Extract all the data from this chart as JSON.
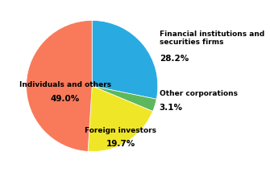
{
  "labels": [
    "Financial institutions and\nsecurities firms",
    "Other corporations",
    "Foreign investors",
    "Individuals and others"
  ],
  "values": [
    28.2,
    3.1,
    19.7,
    49.0
  ],
  "colors": [
    "#29abe2",
    "#5cb85c",
    "#f0e628",
    "#f87a5a"
  ],
  "pct_labels": [
    "28.2%",
    "3.1%",
    "19.7%",
    "49.0%"
  ],
  "startangle": 90,
  "figsize": [
    3.35,
    2.14
  ],
  "dpi": 100
}
